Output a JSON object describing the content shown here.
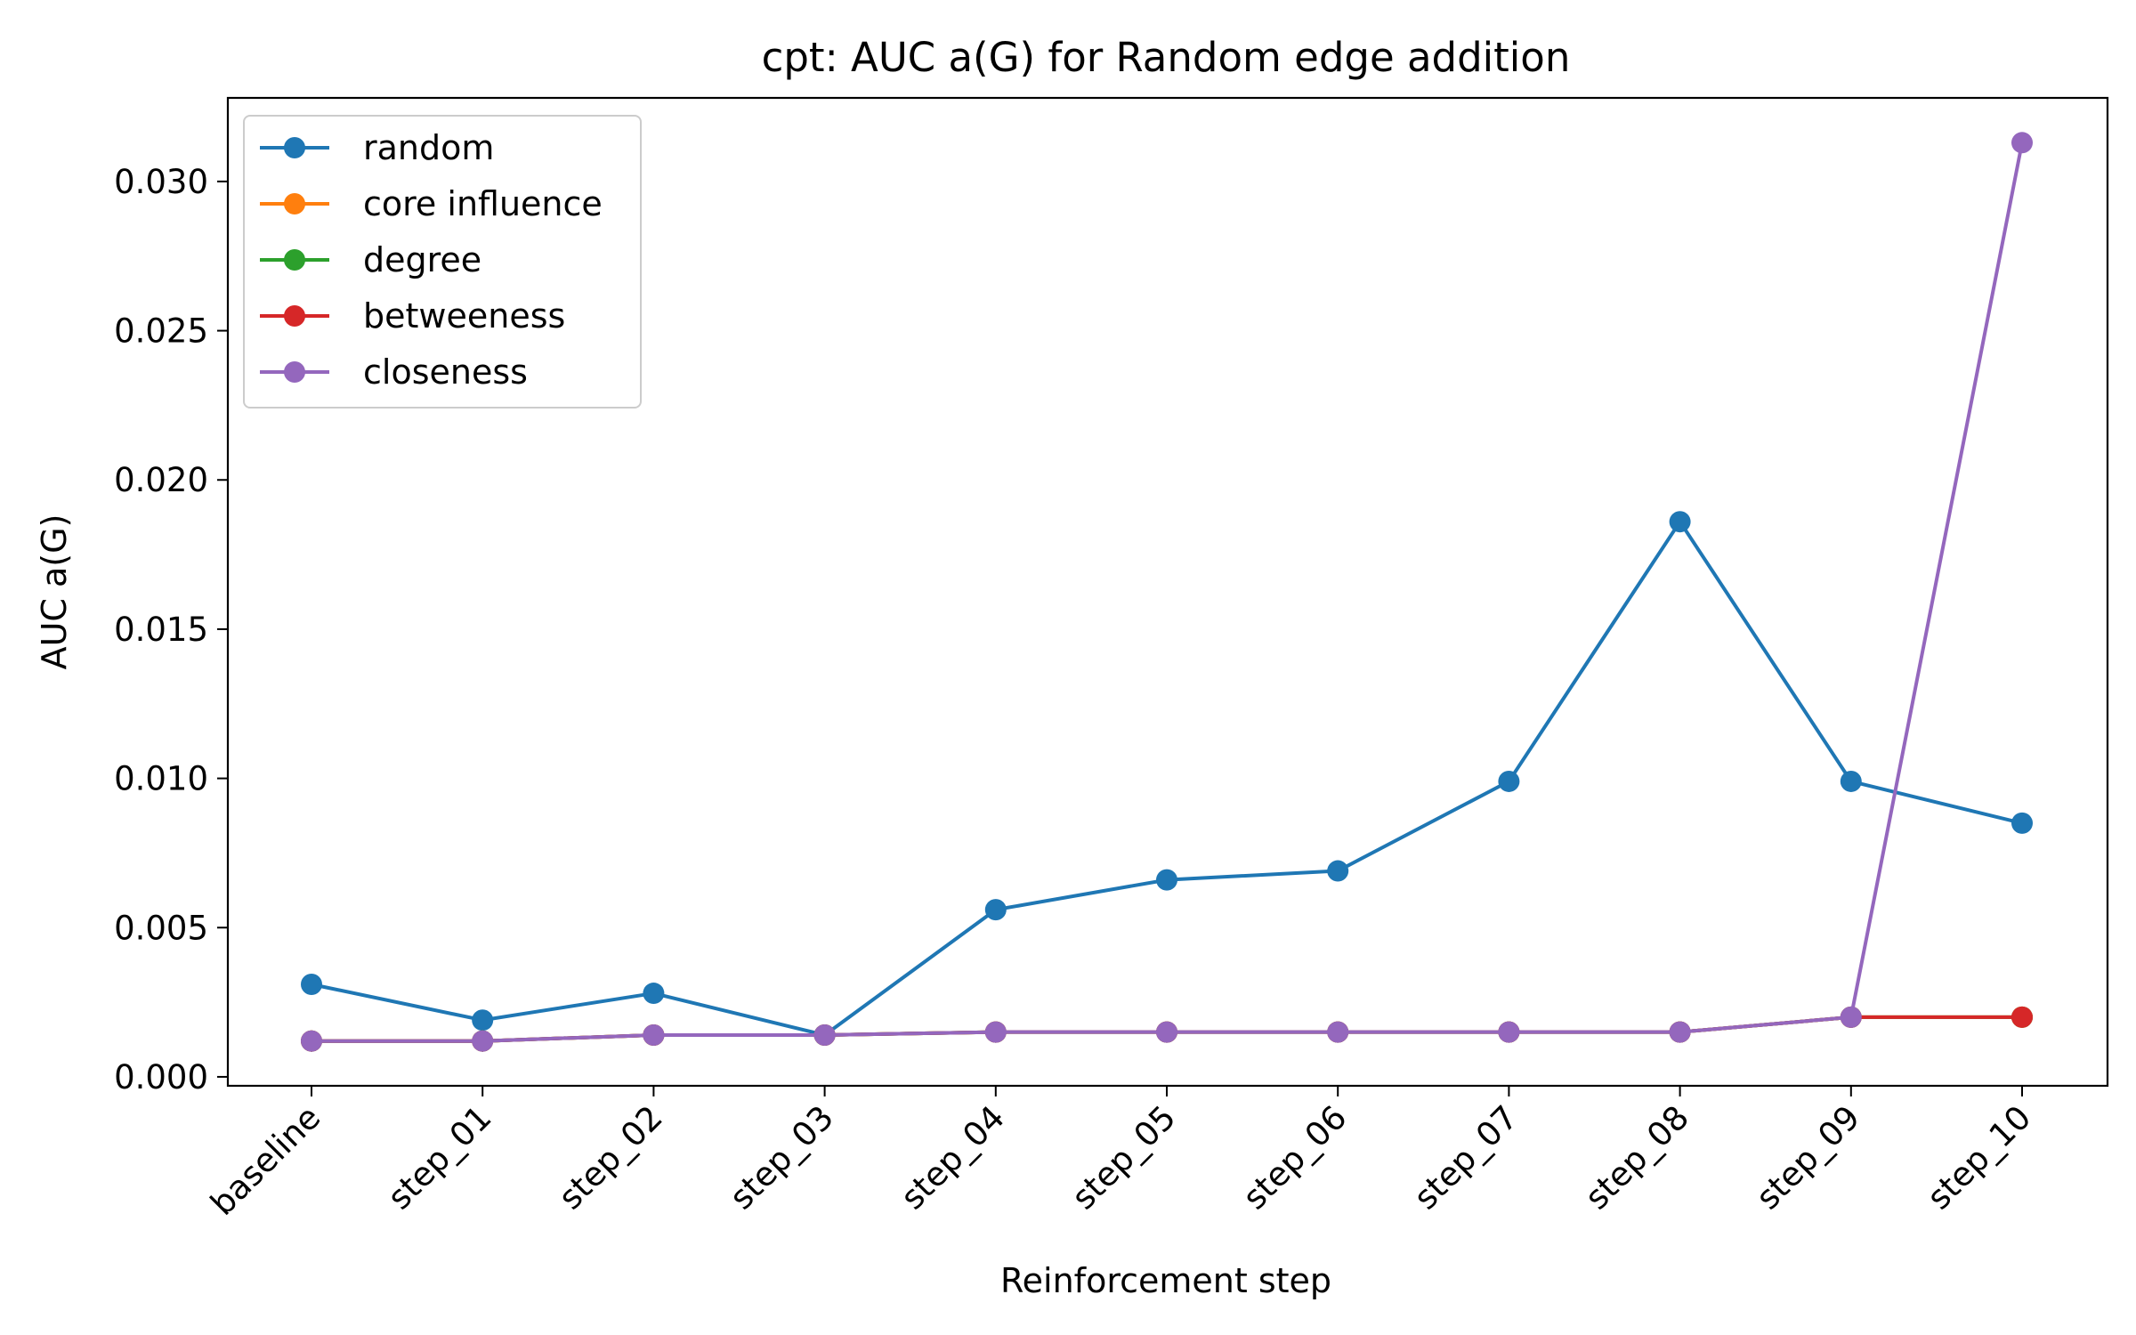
{
  "chart_data": {
    "type": "line",
    "title": "cpt: AUC a(G) for Random edge addition",
    "xlabel": "Reinforcement step",
    "ylabel": "AUC a(G)",
    "categories": [
      "baseline",
      "step_01",
      "step_02",
      "step_03",
      "step_04",
      "step_05",
      "step_06",
      "step_07",
      "step_08",
      "step_09",
      "step_10"
    ],
    "ylim": [
      -0.0003,
      0.0328
    ],
    "yticks": [
      0.0,
      0.005,
      0.01,
      0.015,
      0.02,
      0.025,
      0.03
    ],
    "ytick_labels": [
      "0.000",
      "0.005",
      "0.010",
      "0.015",
      "0.020",
      "0.025",
      "0.030"
    ],
    "grid": false,
    "legend_position": "top-left",
    "series": [
      {
        "name": "random",
        "color": "#1f77b4",
        "values": [
          0.0031,
          0.0019,
          0.0028,
          0.0014,
          0.0056,
          0.0066,
          0.0069,
          0.0099,
          0.0186,
          0.0099,
          0.0085
        ]
      },
      {
        "name": "core influence",
        "color": "#ff7f0e",
        "values": [
          0.0012,
          0.0012,
          0.0014,
          0.0014,
          0.0015,
          0.0015,
          0.0015,
          0.0015,
          0.0015,
          0.002,
          0.002
        ]
      },
      {
        "name": "degree",
        "color": "#2ca02c",
        "values": [
          0.0012,
          0.0012,
          0.0014,
          0.0014,
          0.0015,
          0.0015,
          0.0015,
          0.0015,
          0.0015,
          0.002,
          0.002
        ]
      },
      {
        "name": "betweeness",
        "color": "#d62728",
        "values": [
          0.0012,
          0.0012,
          0.0014,
          0.0014,
          0.0015,
          0.0015,
          0.0015,
          0.0015,
          0.0015,
          0.002,
          0.002
        ]
      },
      {
        "name": "closeness",
        "color": "#9467bd",
        "values": [
          0.0012,
          0.0012,
          0.0014,
          0.0014,
          0.0015,
          0.0015,
          0.0015,
          0.0015,
          0.0015,
          0.002,
          0.0313
        ]
      }
    ]
  }
}
